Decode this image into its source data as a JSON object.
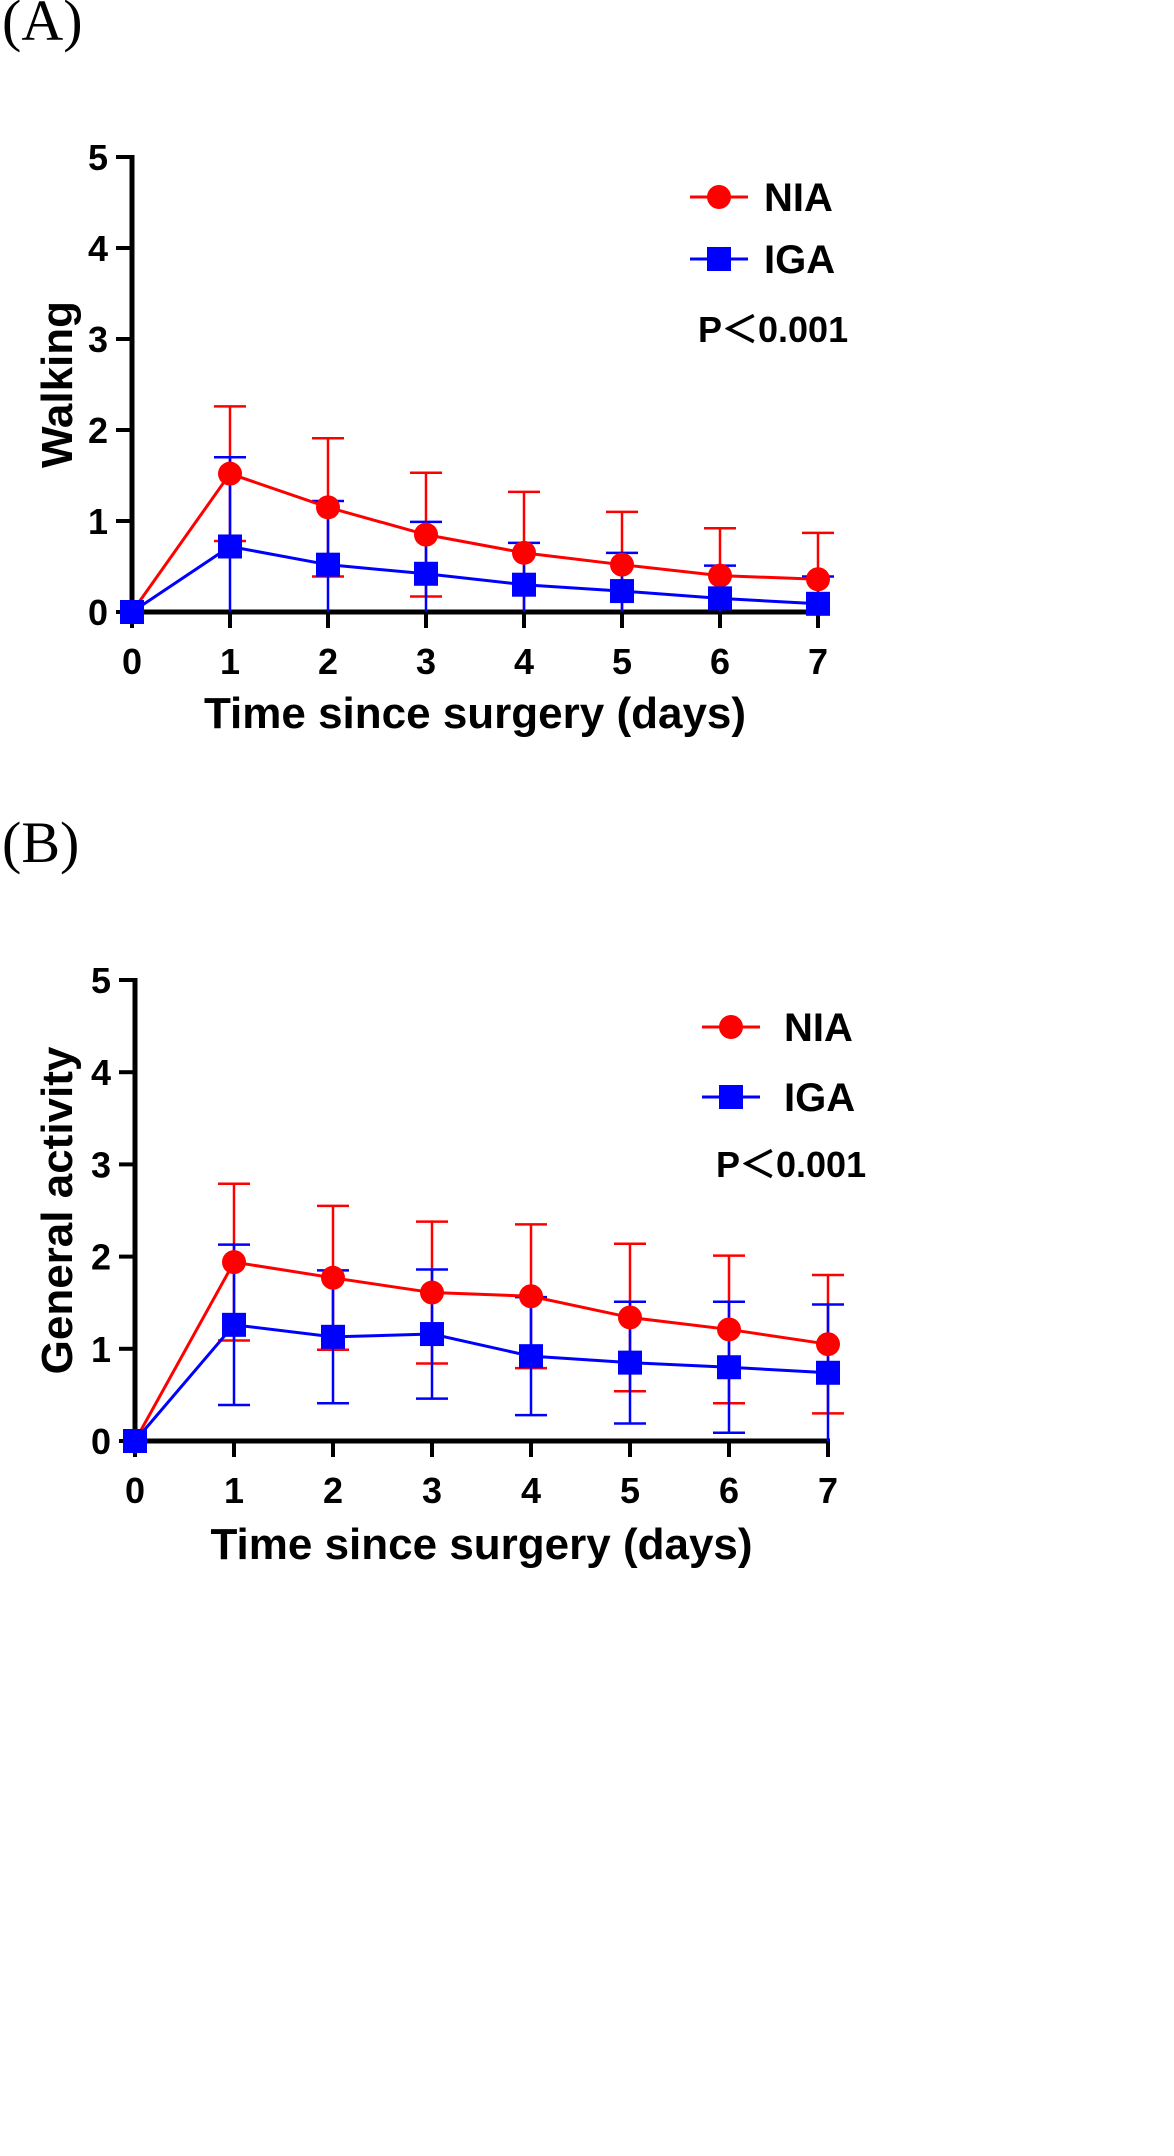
{
  "chart_data": [
    {
      "panel": "(A)",
      "type": "line",
      "xlabel": "Time since surgery (days)",
      "ylabel": "Walking",
      "x": [
        0,
        1,
        2,
        3,
        4,
        5,
        6,
        7
      ],
      "xlim": [
        0,
        7
      ],
      "ylim": [
        0,
        5
      ],
      "yticks": [
        0,
        1,
        2,
        3,
        4,
        5
      ],
      "annotation": "P＜0.001",
      "series": [
        {
          "name": "NIA",
          "color": "#ff0000",
          "marker": "circle",
          "values": [
            0,
            1.52,
            1.15,
            0.85,
            0.65,
            0.52,
            0.4,
            0.36
          ],
          "error": [
            0,
            0.74,
            0.76,
            0.68,
            0.67,
            0.58,
            0.52,
            0.51
          ]
        },
        {
          "name": "IGA",
          "color": "#0000ff",
          "marker": "square",
          "values": [
            0,
            0.72,
            0.52,
            0.42,
            0.3,
            0.23,
            0.15,
            0.09
          ],
          "error": [
            0,
            0.98,
            0.7,
            0.57,
            0.46,
            0.42,
            0.36,
            0.3
          ]
        }
      ]
    },
    {
      "panel": "(B)",
      "type": "line",
      "xlabel": "Time since surgery (days)",
      "ylabel": "General activity",
      "x": [
        0,
        1,
        2,
        3,
        4,
        5,
        6,
        7
      ],
      "xlim": [
        0,
        7
      ],
      "ylim": [
        0,
        5
      ],
      "yticks": [
        0,
        1,
        2,
        3,
        4,
        5
      ],
      "annotation": "P＜0.001",
      "series": [
        {
          "name": "NIA",
          "color": "#ff0000",
          "marker": "circle",
          "values": [
            0,
            1.94,
            1.77,
            1.61,
            1.57,
            1.34,
            1.21,
            1.05
          ],
          "error": [
            0,
            0.85,
            0.78,
            0.77,
            0.78,
            0.8,
            0.8,
            0.75
          ]
        },
        {
          "name": "IGA",
          "color": "#0000ff",
          "marker": "square",
          "values": [
            0,
            1.26,
            1.13,
            1.16,
            0.92,
            0.85,
            0.8,
            0.74
          ],
          "error": [
            0,
            0.87,
            0.72,
            0.7,
            0.64,
            0.66,
            0.71,
            0.74
          ]
        }
      ]
    }
  ]
}
